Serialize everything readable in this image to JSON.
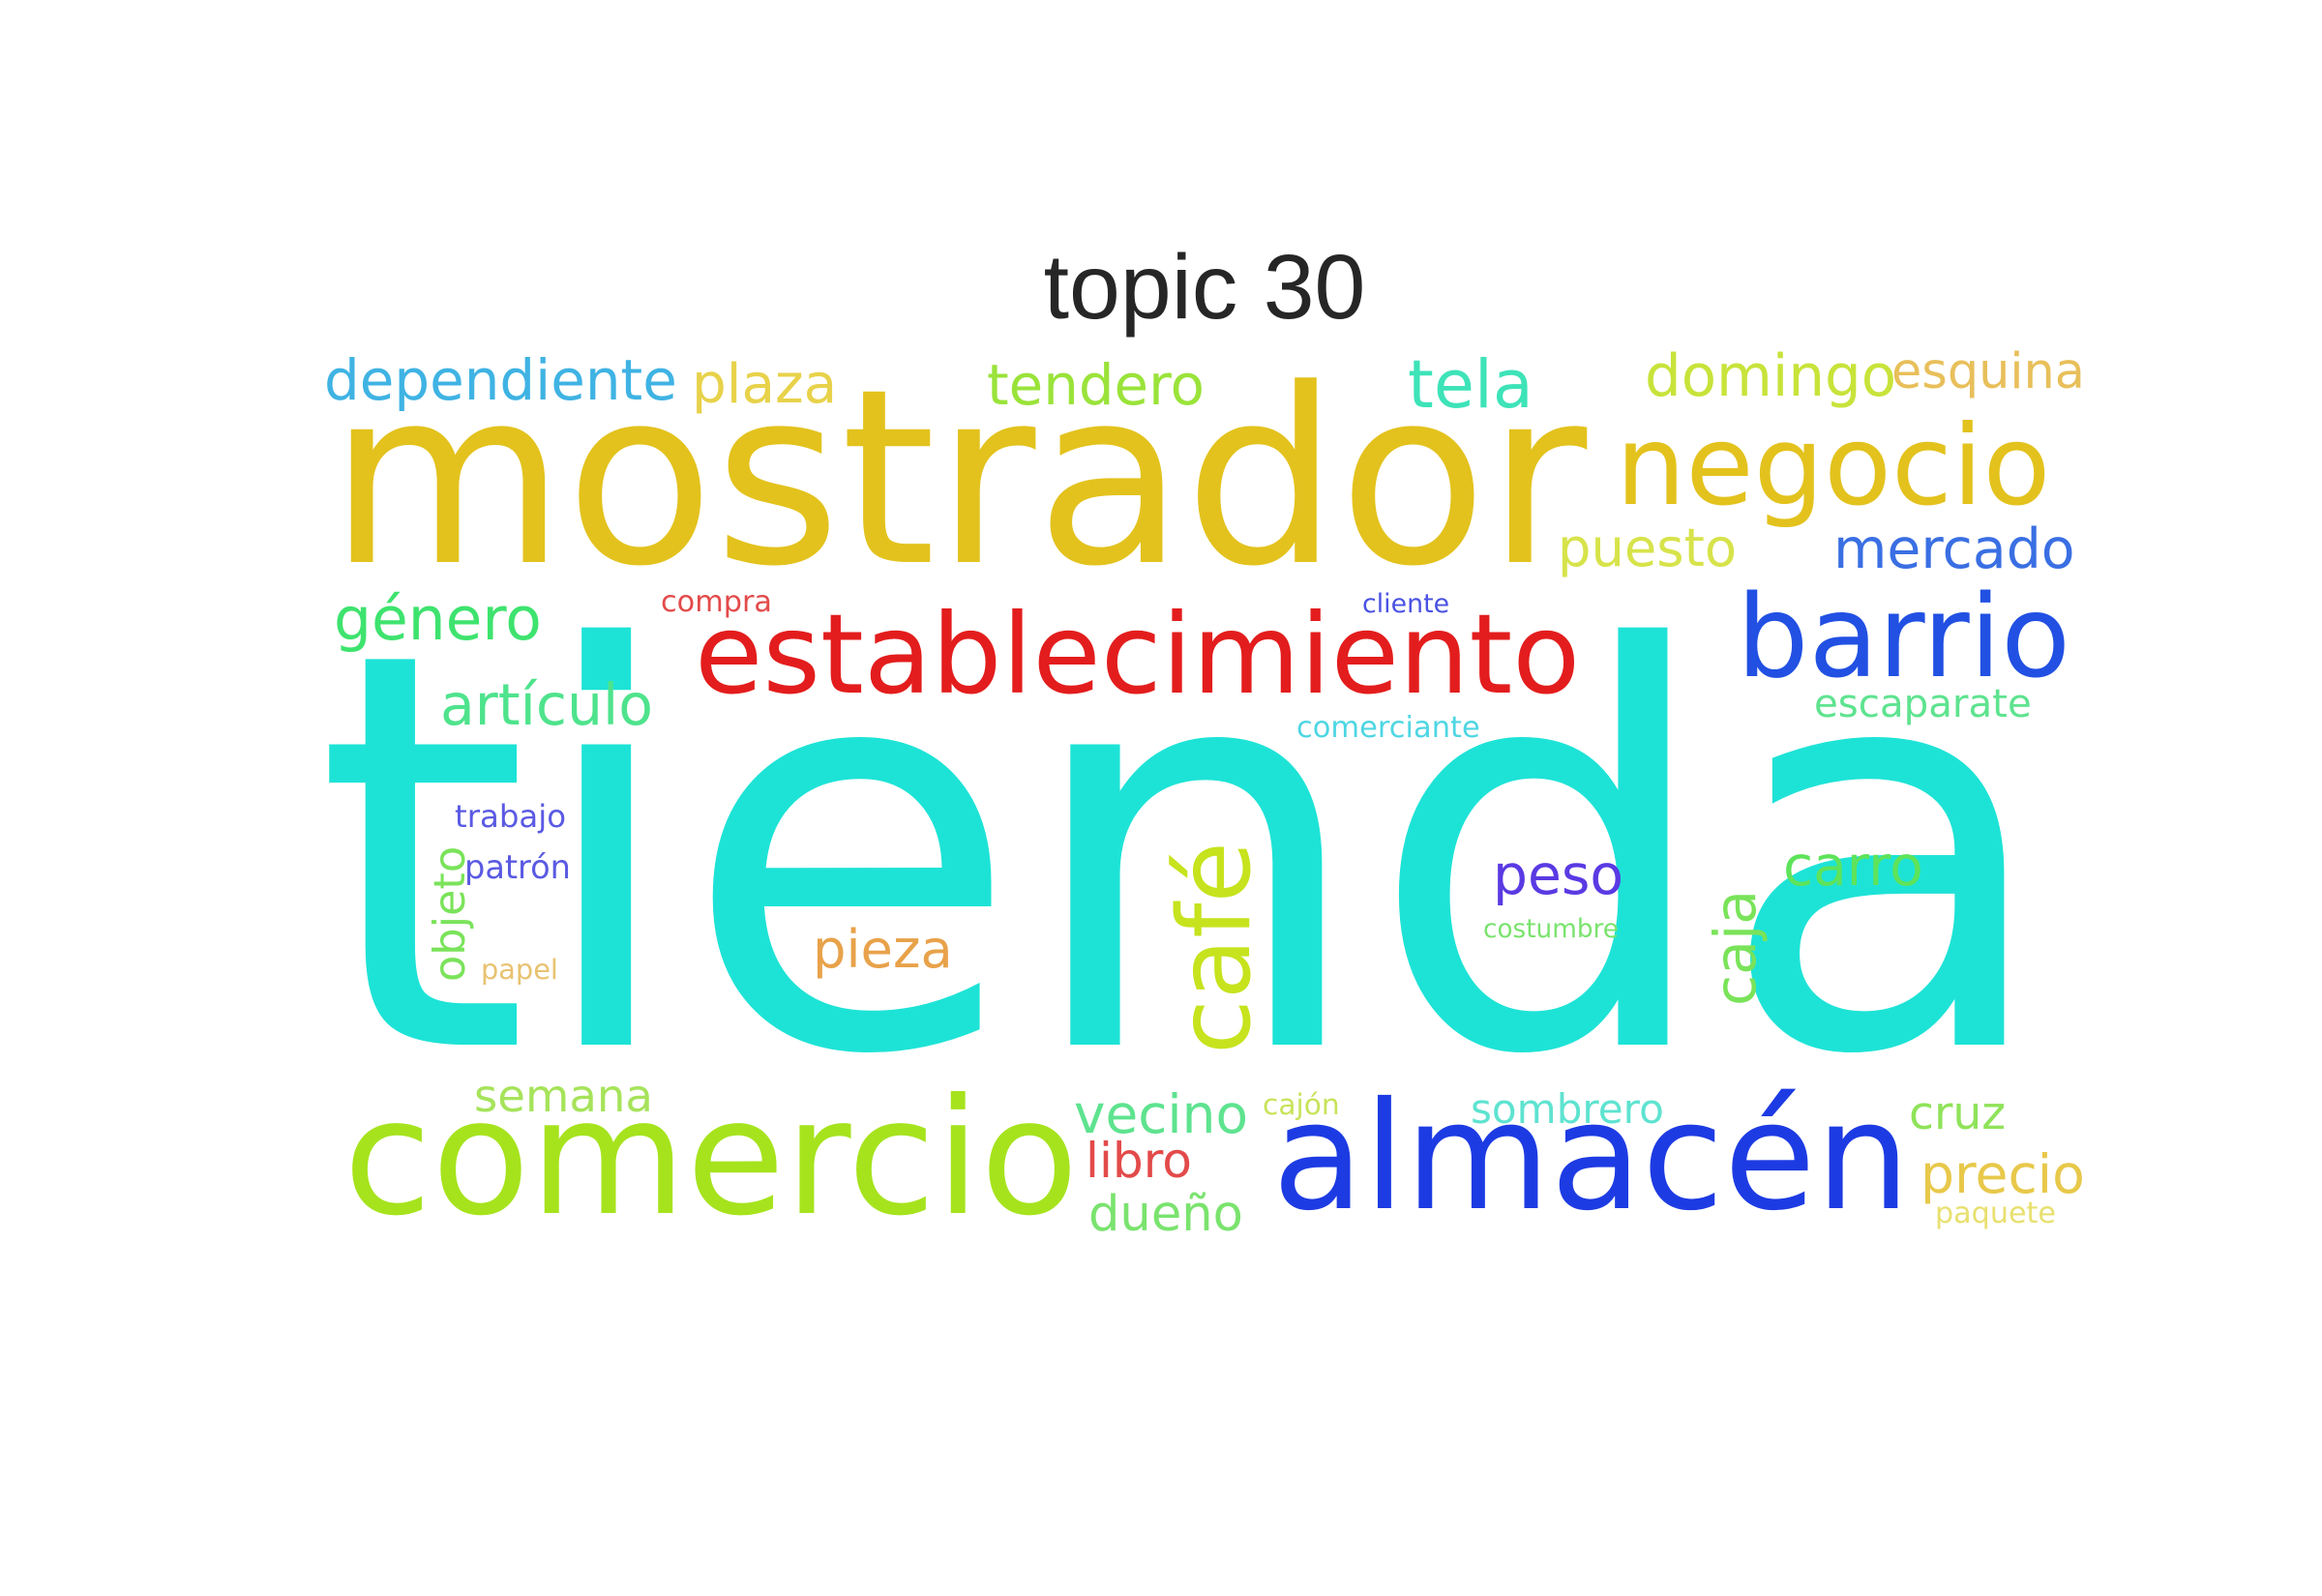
{
  "title": "topic 30",
  "words": [
    {
      "text": "tienda",
      "color": "#1de3d6",
      "orientation": "horizontal"
    },
    {
      "text": "mostrador",
      "color": "#e3c21d",
      "orientation": "horizontal"
    },
    {
      "text": "almacén",
      "color": "#1d3be3",
      "orientation": "horizontal"
    },
    {
      "text": "comercio",
      "color": "#a6e31d",
      "orientation": "horizontal"
    },
    {
      "text": "establecimiento",
      "color": "#e31d1d",
      "orientation": "horizontal"
    },
    {
      "text": "negocio",
      "color": "#e3c21d",
      "orientation": "horizontal"
    },
    {
      "text": "barrio",
      "color": "#2150e3",
      "orientation": "horizontal"
    },
    {
      "text": "café",
      "color": "#c6e31d",
      "orientation": "vertical"
    },
    {
      "text": "dependiente",
      "color": "#3fb3e3",
      "orientation": "horizontal"
    },
    {
      "text": "plaza",
      "color": "#e8d24a",
      "orientation": "horizontal"
    },
    {
      "text": "tendero",
      "color": "#9ae33a",
      "orientation": "horizontal"
    },
    {
      "text": "tela",
      "color": "#3ee3b8",
      "orientation": "horizontal"
    },
    {
      "text": "domingo",
      "color": "#c8e33a",
      "orientation": "horizontal"
    },
    {
      "text": "esquina",
      "color": "#e8bf5a",
      "orientation": "horizontal"
    },
    {
      "text": "puesto",
      "color": "#d7e34a",
      "orientation": "horizontal"
    },
    {
      "text": "mercado",
      "color": "#3a6fe3",
      "orientation": "horizontal"
    },
    {
      "text": "género",
      "color": "#3ee36e",
      "orientation": "horizontal"
    },
    {
      "text": "compra",
      "color": "#e34a4a",
      "orientation": "horizontal"
    },
    {
      "text": "cliente",
      "color": "#4a52e3",
      "orientation": "horizontal"
    },
    {
      "text": "artículo",
      "color": "#4ee38c",
      "orientation": "horizontal"
    },
    {
      "text": "comerciante",
      "color": "#4ed6e3",
      "orientation": "horizontal"
    },
    {
      "text": "escaparate",
      "color": "#5ee38f",
      "orientation": "horizontal"
    },
    {
      "text": "trabajo",
      "color": "#5a5ae3",
      "orientation": "horizontal"
    },
    {
      "text": "patrón",
      "color": "#5a5ae3",
      "orientation": "horizontal"
    },
    {
      "text": "objeto",
      "color": "#7ae35a",
      "orientation": "vertical"
    },
    {
      "text": "papel",
      "color": "#e8c270",
      "orientation": "horizontal"
    },
    {
      "text": "peso",
      "color": "#5a3ae3",
      "orientation": "horizontal"
    },
    {
      "text": "carro",
      "color": "#5ee35a",
      "orientation": "horizontal"
    },
    {
      "text": "costumbre",
      "color": "#7ae36e",
      "orientation": "horizontal"
    },
    {
      "text": "caja",
      "color": "#7ae35a",
      "orientation": "vertical"
    },
    {
      "text": "pieza",
      "color": "#e8a24a",
      "orientation": "horizontal"
    },
    {
      "text": "semana",
      "color": "#a6e35a",
      "orientation": "horizontal"
    },
    {
      "text": "vecino",
      "color": "#5ee38f",
      "orientation": "horizontal"
    },
    {
      "text": "cajón",
      "color": "#c8e35a",
      "orientation": "horizontal"
    },
    {
      "text": "sombrero",
      "color": "#5ee3d0",
      "orientation": "horizontal"
    },
    {
      "text": "cruz",
      "color": "#8fe35a",
      "orientation": "horizontal"
    },
    {
      "text": "libro",
      "color": "#e34a4a",
      "orientation": "horizontal"
    },
    {
      "text": "dueño",
      "color": "#7ae36e",
      "orientation": "horizontal"
    },
    {
      "text": "precio",
      "color": "#e8c84a",
      "orientation": "horizontal"
    },
    {
      "text": "paquete",
      "color": "#e8e070",
      "orientation": "horizontal"
    }
  ]
}
